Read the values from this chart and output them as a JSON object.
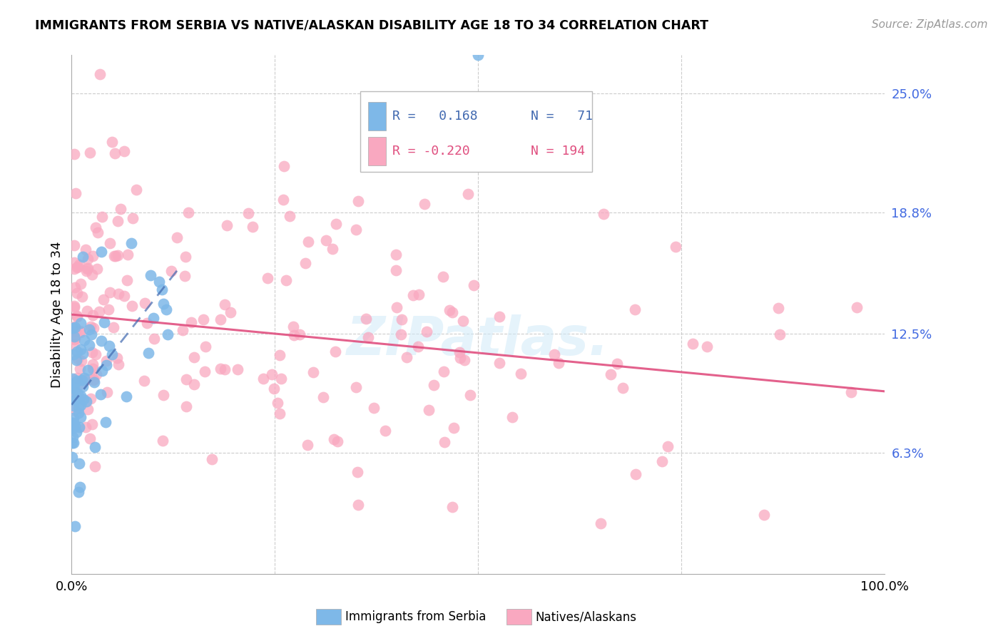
{
  "title": "IMMIGRANTS FROM SERBIA VS NATIVE/ALASKAN DISABILITY AGE 18 TO 34 CORRELATION CHART",
  "source": "Source: ZipAtlas.com",
  "ylabel": "Disability Age 18 to 34",
  "ytick_values": [
    0.063,
    0.125,
    0.188,
    0.25
  ],
  "ytick_labels": [
    "6.3%",
    "12.5%",
    "18.8%",
    "25.0%"
  ],
  "xlim": [
    0.0,
    1.0
  ],
  "ylim": [
    0.0,
    0.27
  ],
  "blue_color": "#7EB8E8",
  "pink_color": "#F9A8C0",
  "blue_line_color": "#4169B0",
  "pink_line_color": "#E05080",
  "pink_trend_x": [
    0.0,
    1.0
  ],
  "pink_trend_y": [
    0.135,
    0.095
  ],
  "blue_trend_x": [
    0.0,
    0.13
  ],
  "blue_trend_y": [
    0.088,
    0.158
  ],
  "watermark_text": "ZIPatlas.",
  "legend_blue_r": "R =   0.168",
  "legend_blue_n": "N =   71",
  "legend_pink_r": "R = -0.220",
  "legend_pink_n": "N = 194",
  "bottom_legend_blue": "Immigrants from Serbia",
  "bottom_legend_pink": "Natives/Alaskans"
}
